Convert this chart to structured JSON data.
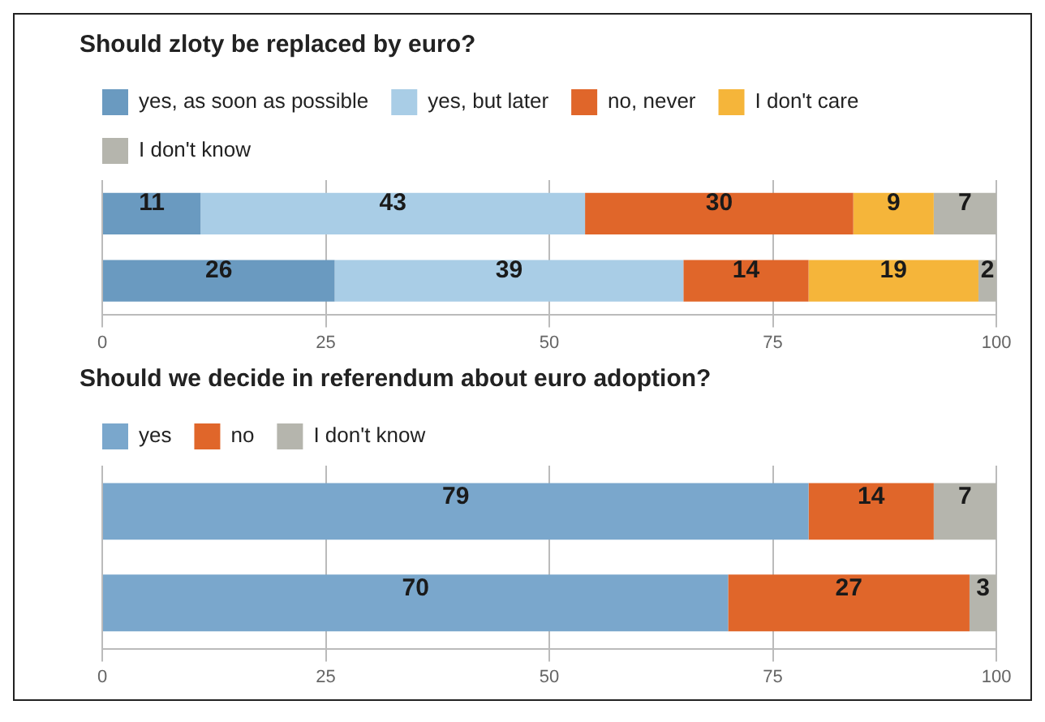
{
  "chart_data": [
    {
      "type": "bar",
      "orientation": "horizontal",
      "stacked": true,
      "title": "Should zloty be replaced by euro?",
      "categories": [
        null,
        null
      ],
      "series": [
        {
          "name": "yes, as soon as possible",
          "color": "#6a9ac0",
          "values": [
            11,
            26
          ]
        },
        {
          "name": "yes, but later",
          "color": "#a9cde6",
          "values": [
            43,
            39
          ]
        },
        {
          "name": "no, never",
          "color": "#e0662a",
          "values": [
            30,
            14
          ]
        },
        {
          "name": "I don't care",
          "color": "#f5b53a",
          "values": [
            9,
            19
          ]
        },
        {
          "name": "I don't know",
          "color": "#b5b5ad",
          "values": [
            7,
            2
          ]
        }
      ],
      "xlim": [
        0,
        100
      ],
      "xticks": [
        0,
        25,
        50,
        75,
        100
      ],
      "grid": "x",
      "legend": "top",
      "data_labels": true
    },
    {
      "type": "bar",
      "orientation": "horizontal",
      "stacked": true,
      "title": "Should we decide in referendum about euro adoption?",
      "categories": [
        null,
        null
      ],
      "series": [
        {
          "name": "yes",
          "color": "#7aa7cc",
          "values": [
            79,
            70
          ]
        },
        {
          "name": "no",
          "color": "#e0662a",
          "values": [
            14,
            27
          ]
        },
        {
          "name": "I don't know",
          "color": "#b5b5ad",
          "values": [
            7,
            3
          ]
        }
      ],
      "xlim": [
        0,
        100
      ],
      "xticks": [
        0,
        25,
        50,
        75,
        100
      ],
      "grid": "x",
      "legend": "top",
      "data_labels": true
    }
  ]
}
